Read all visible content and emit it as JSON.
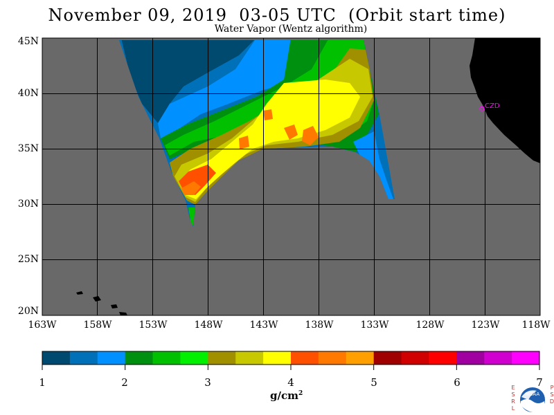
{
  "title": "November 09, 2019  03-05 UTC  (Orbit start time)",
  "subtitle": "Water Vapor (Wentz algorithm)",
  "map": {
    "lat_labels": [
      "45N",
      "40N",
      "35N",
      "30N",
      "25N",
      "20N"
    ],
    "lon_labels": [
      "163W",
      "158W",
      "153W",
      "148W",
      "143W",
      "138W",
      "133W",
      "128W",
      "123W",
      "118W"
    ],
    "station_label": "CZD",
    "colors": {
      "background": "#696969",
      "land": "#000000",
      "grid": "#000000",
      "station": "#ff00ff"
    }
  },
  "colorbar": {
    "labels": [
      "1",
      "2",
      "3",
      "4",
      "5",
      "6",
      "7"
    ],
    "units": "g/cm",
    "units_sup": "2",
    "colors": [
      "#004a70",
      "#0070b8",
      "#0090ff",
      "#009010",
      "#00c000",
      "#00f000",
      "#a09000",
      "#c8c800",
      "#ffff00",
      "#ff5000",
      "#ff7800",
      "#ffa000",
      "#a00000",
      "#d00000",
      "#ff0000",
      "#a000a0",
      "#d000d0",
      "#ff00ff"
    ]
  },
  "logo": {
    "left_letters": "ESRL",
    "right_letters": "PSD",
    "text": "NOAA"
  }
}
